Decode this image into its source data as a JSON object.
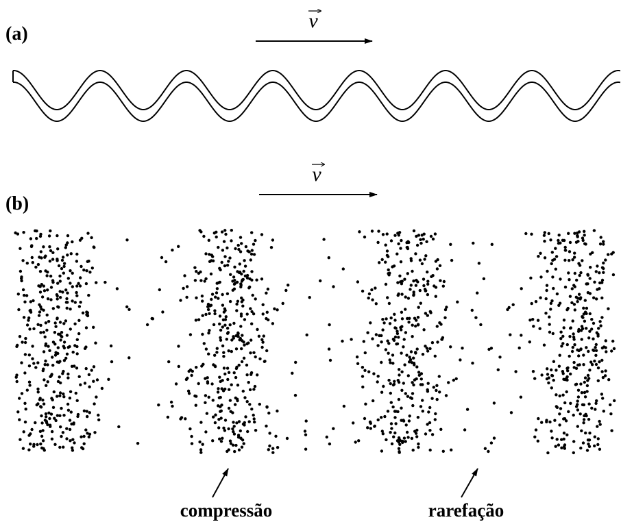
{
  "panel_a": {
    "label": "(a)",
    "velocity": "v"
  },
  "panel_b": {
    "label": "(b)",
    "velocity": "v",
    "annotations": [
      "compressão",
      "rarefação"
    ]
  }
}
